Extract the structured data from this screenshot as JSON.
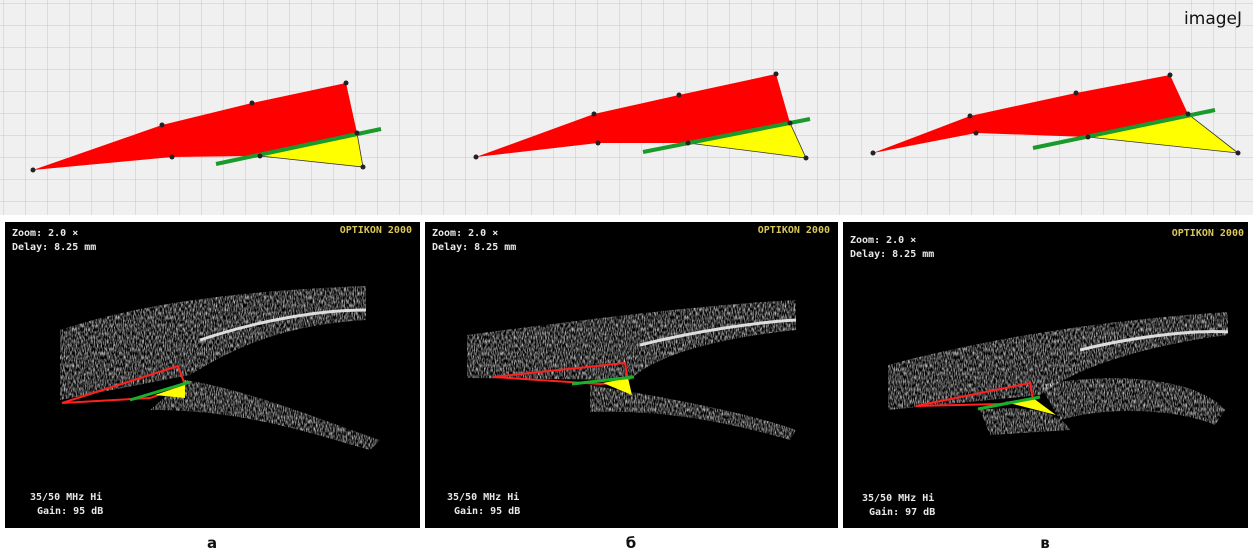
{
  "header": {
    "label": "imageJ"
  },
  "panels": [
    {
      "zoom": "Zoom: 2.0 ×",
      "delay": "Delay: 8.25 mm",
      "brand": "OPTIKON 2000",
      "frequency": "35/50 MHz Hi",
      "gain": "Gain: 95 dB",
      "caption": "а"
    },
    {
      "zoom": "Zoom: 2.0 ×",
      "delay": "Delay: 8.25 mm",
      "brand": "OPTIKON 2000",
      "frequency": "35/50 MHz Hi",
      "gain": "Gain: 95 dB",
      "caption": "б"
    },
    {
      "zoom": "Zoom: 2.0 ×",
      "delay": "Delay: 8.25 mm",
      "brand": "OPTIKON 2000",
      "frequency": "35/50 MHz Hi",
      "gain": "Gain: 97 dB",
      "caption": "в"
    }
  ]
}
